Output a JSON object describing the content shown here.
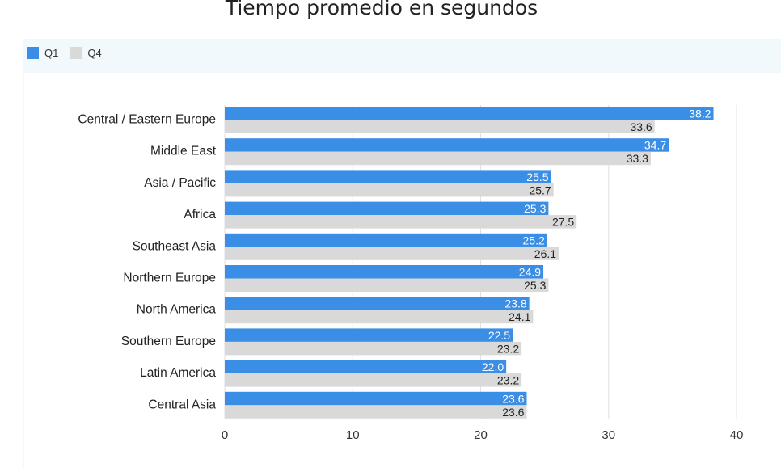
{
  "title": "Tiempo promedio en segundos",
  "colors": {
    "q1": "#3a8ee6",
    "q4": "#d9d9d9",
    "panel": "#f2f9fc",
    "grid": "#e0e0e0"
  },
  "legend": [
    {
      "name": "Q1",
      "color": "#3a8ee6"
    },
    {
      "name": "Q4",
      "color": "#d9d9d9"
    }
  ],
  "chart_data": {
    "type": "bar",
    "orientation": "horizontal",
    "title": "Tiempo promedio en segundos",
    "categories": [
      "Central / Eastern Europe",
      "Middle East",
      "Asia / Pacific",
      "Africa",
      "Southeast Asia",
      "Northern Europe",
      "North America",
      "Southern Europe",
      "Latin America",
      "Central Asia"
    ],
    "series": [
      {
        "name": "Q1",
        "values": [
          38.2,
          34.7,
          25.5,
          25.3,
          25.2,
          24.9,
          23.8,
          22.5,
          22.0,
          23.6
        ]
      },
      {
        "name": "Q4",
        "values": [
          33.6,
          33.3,
          25.7,
          27.5,
          26.1,
          25.3,
          24.1,
          23.2,
          23.2,
          23.6
        ]
      }
    ],
    "value_labels": {
      "Q1": [
        "38.2",
        "34.7",
        "25.5",
        "25.3",
        "25.2",
        "24.9",
        "23.8",
        "22.5",
        "22.0",
        "23.6"
      ],
      "Q4": [
        "33.6",
        "33.3",
        "25.7",
        "27.5",
        "26.1",
        "25.3",
        "24.1",
        "23.2",
        "23.2",
        "23.6"
      ]
    },
    "x_ticks": [
      0,
      10,
      20,
      30,
      40
    ],
    "x_tick_labels": [
      "0",
      "10",
      "20",
      "30",
      "40"
    ],
    "xlim": [
      0,
      40
    ],
    "grid": true,
    "legend_position": "top-left"
  }
}
